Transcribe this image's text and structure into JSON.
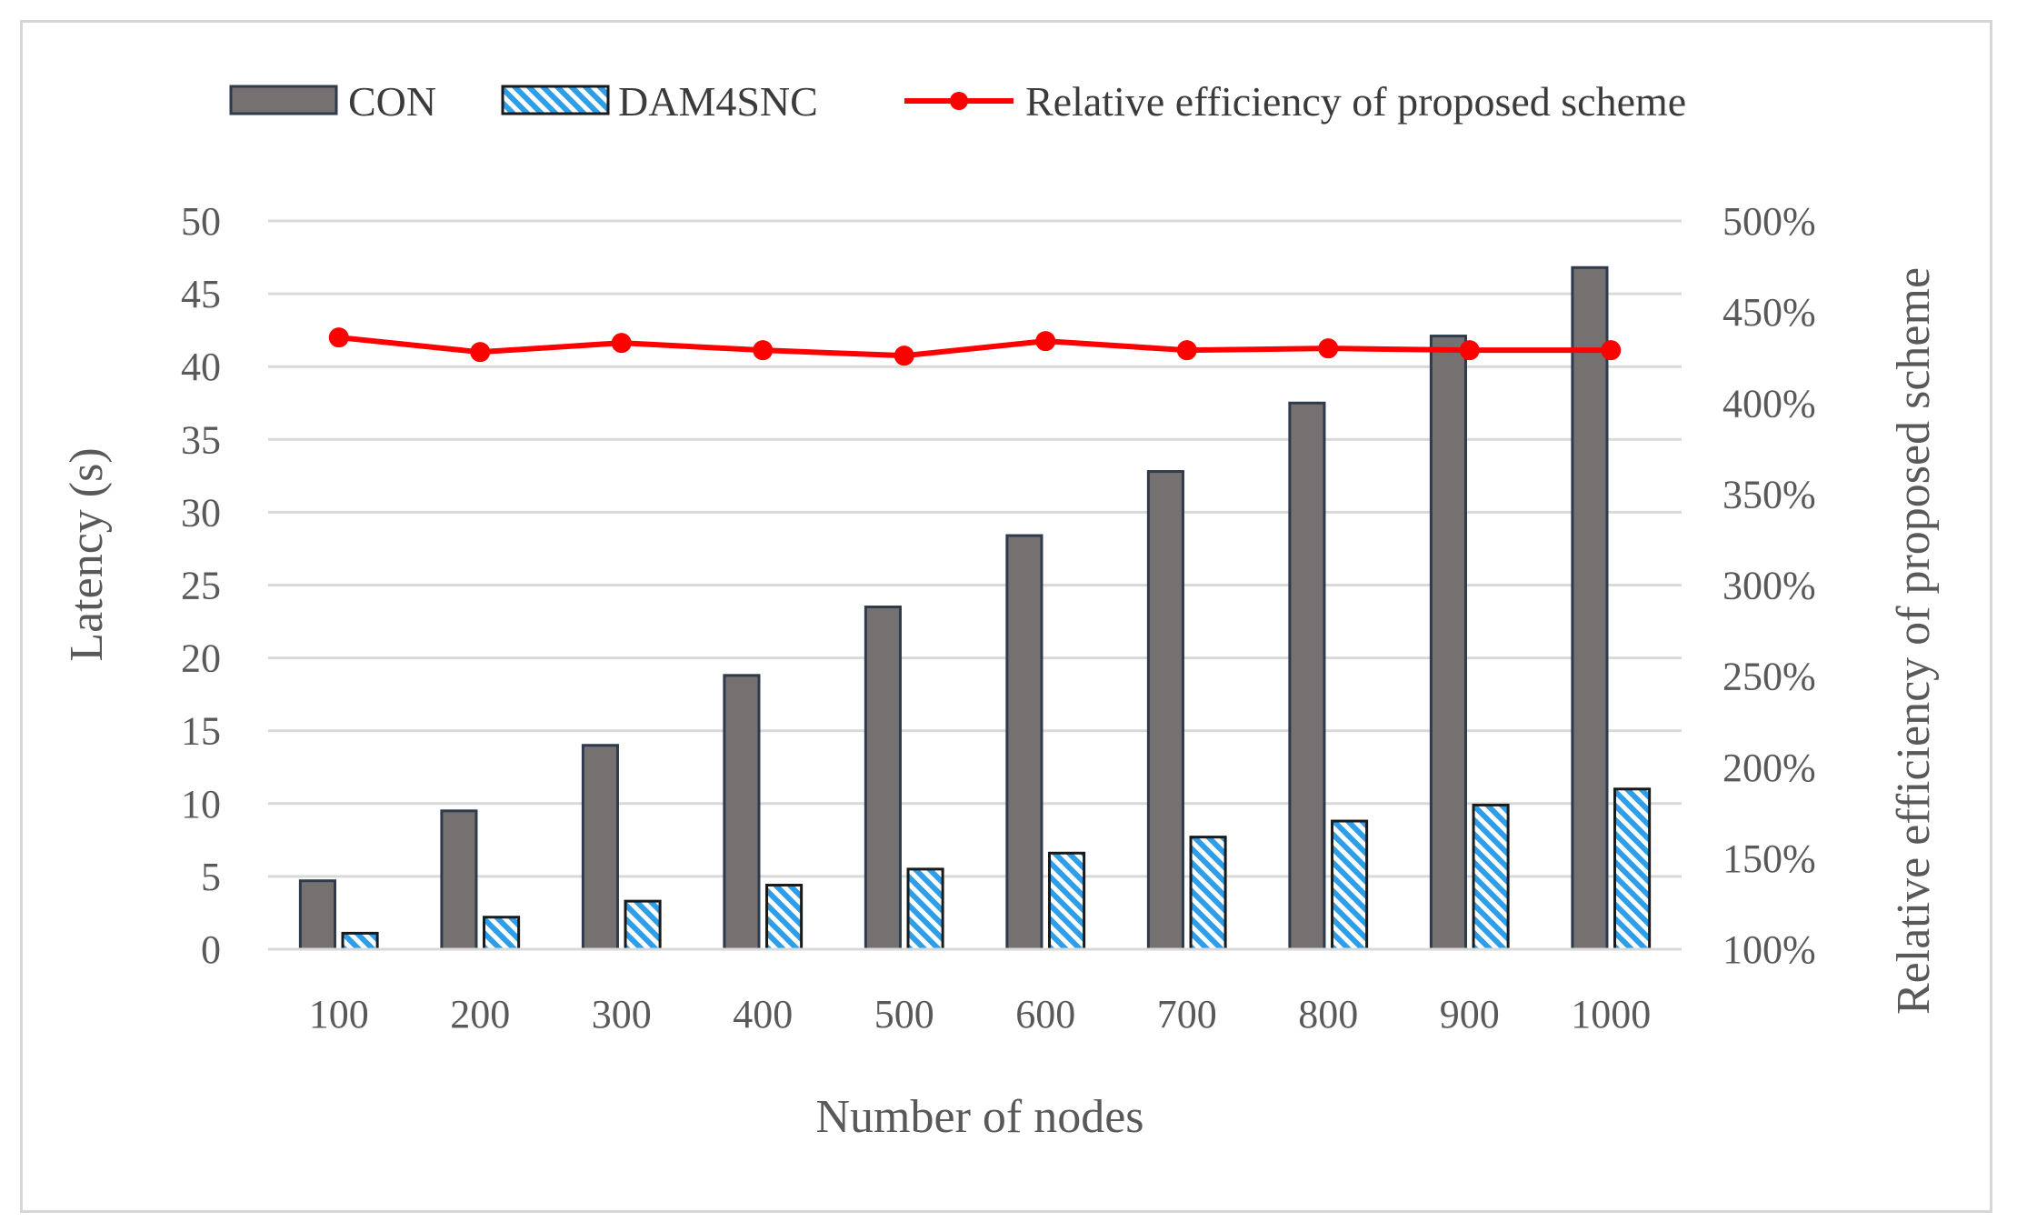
{
  "chart_data": {
    "type": "bar",
    "categories": [
      "100",
      "200",
      "300",
      "400",
      "500",
      "600",
      "700",
      "800",
      "900",
      "1000"
    ],
    "series": [
      {
        "name": "CON",
        "kind": "bar",
        "axis": "left",
        "color": "#757171",
        "values": [
          4.7,
          9.5,
          14.0,
          18.8,
          23.5,
          28.4,
          32.8,
          37.5,
          42.1,
          46.8
        ]
      },
      {
        "name": "DAM4SNC",
        "kind": "bar",
        "axis": "left",
        "color": "#2e9ee8",
        "pattern": "diagonal-hatch",
        "values": [
          1.1,
          2.2,
          3.3,
          4.4,
          5.5,
          6.6,
          7.7,
          8.8,
          9.9,
          11.0
        ]
      },
      {
        "name": "Relative efficiency of proposed scheme",
        "kind": "line",
        "axis": "right",
        "color": "#ff0000",
        "values": [
          436,
          428,
          433,
          429,
          426,
          434,
          429,
          430,
          429,
          429
        ]
      }
    ],
    "xlabel": "Number of nodes",
    "ylabel": "Latency (s)",
    "y2label": "Relative efficiency of proposed scheme",
    "ylim": [
      0,
      50
    ],
    "yticks": [
      "0",
      "5",
      "10",
      "15",
      "20",
      "25",
      "30",
      "35",
      "40",
      "45",
      "50"
    ],
    "y2lim": [
      100,
      500
    ],
    "y2ticks": [
      "100%",
      "150%",
      "200%",
      "250%",
      "300%",
      "350%",
      "400%",
      "450%",
      "500%"
    ],
    "grid": true,
    "legend_position": "top"
  }
}
